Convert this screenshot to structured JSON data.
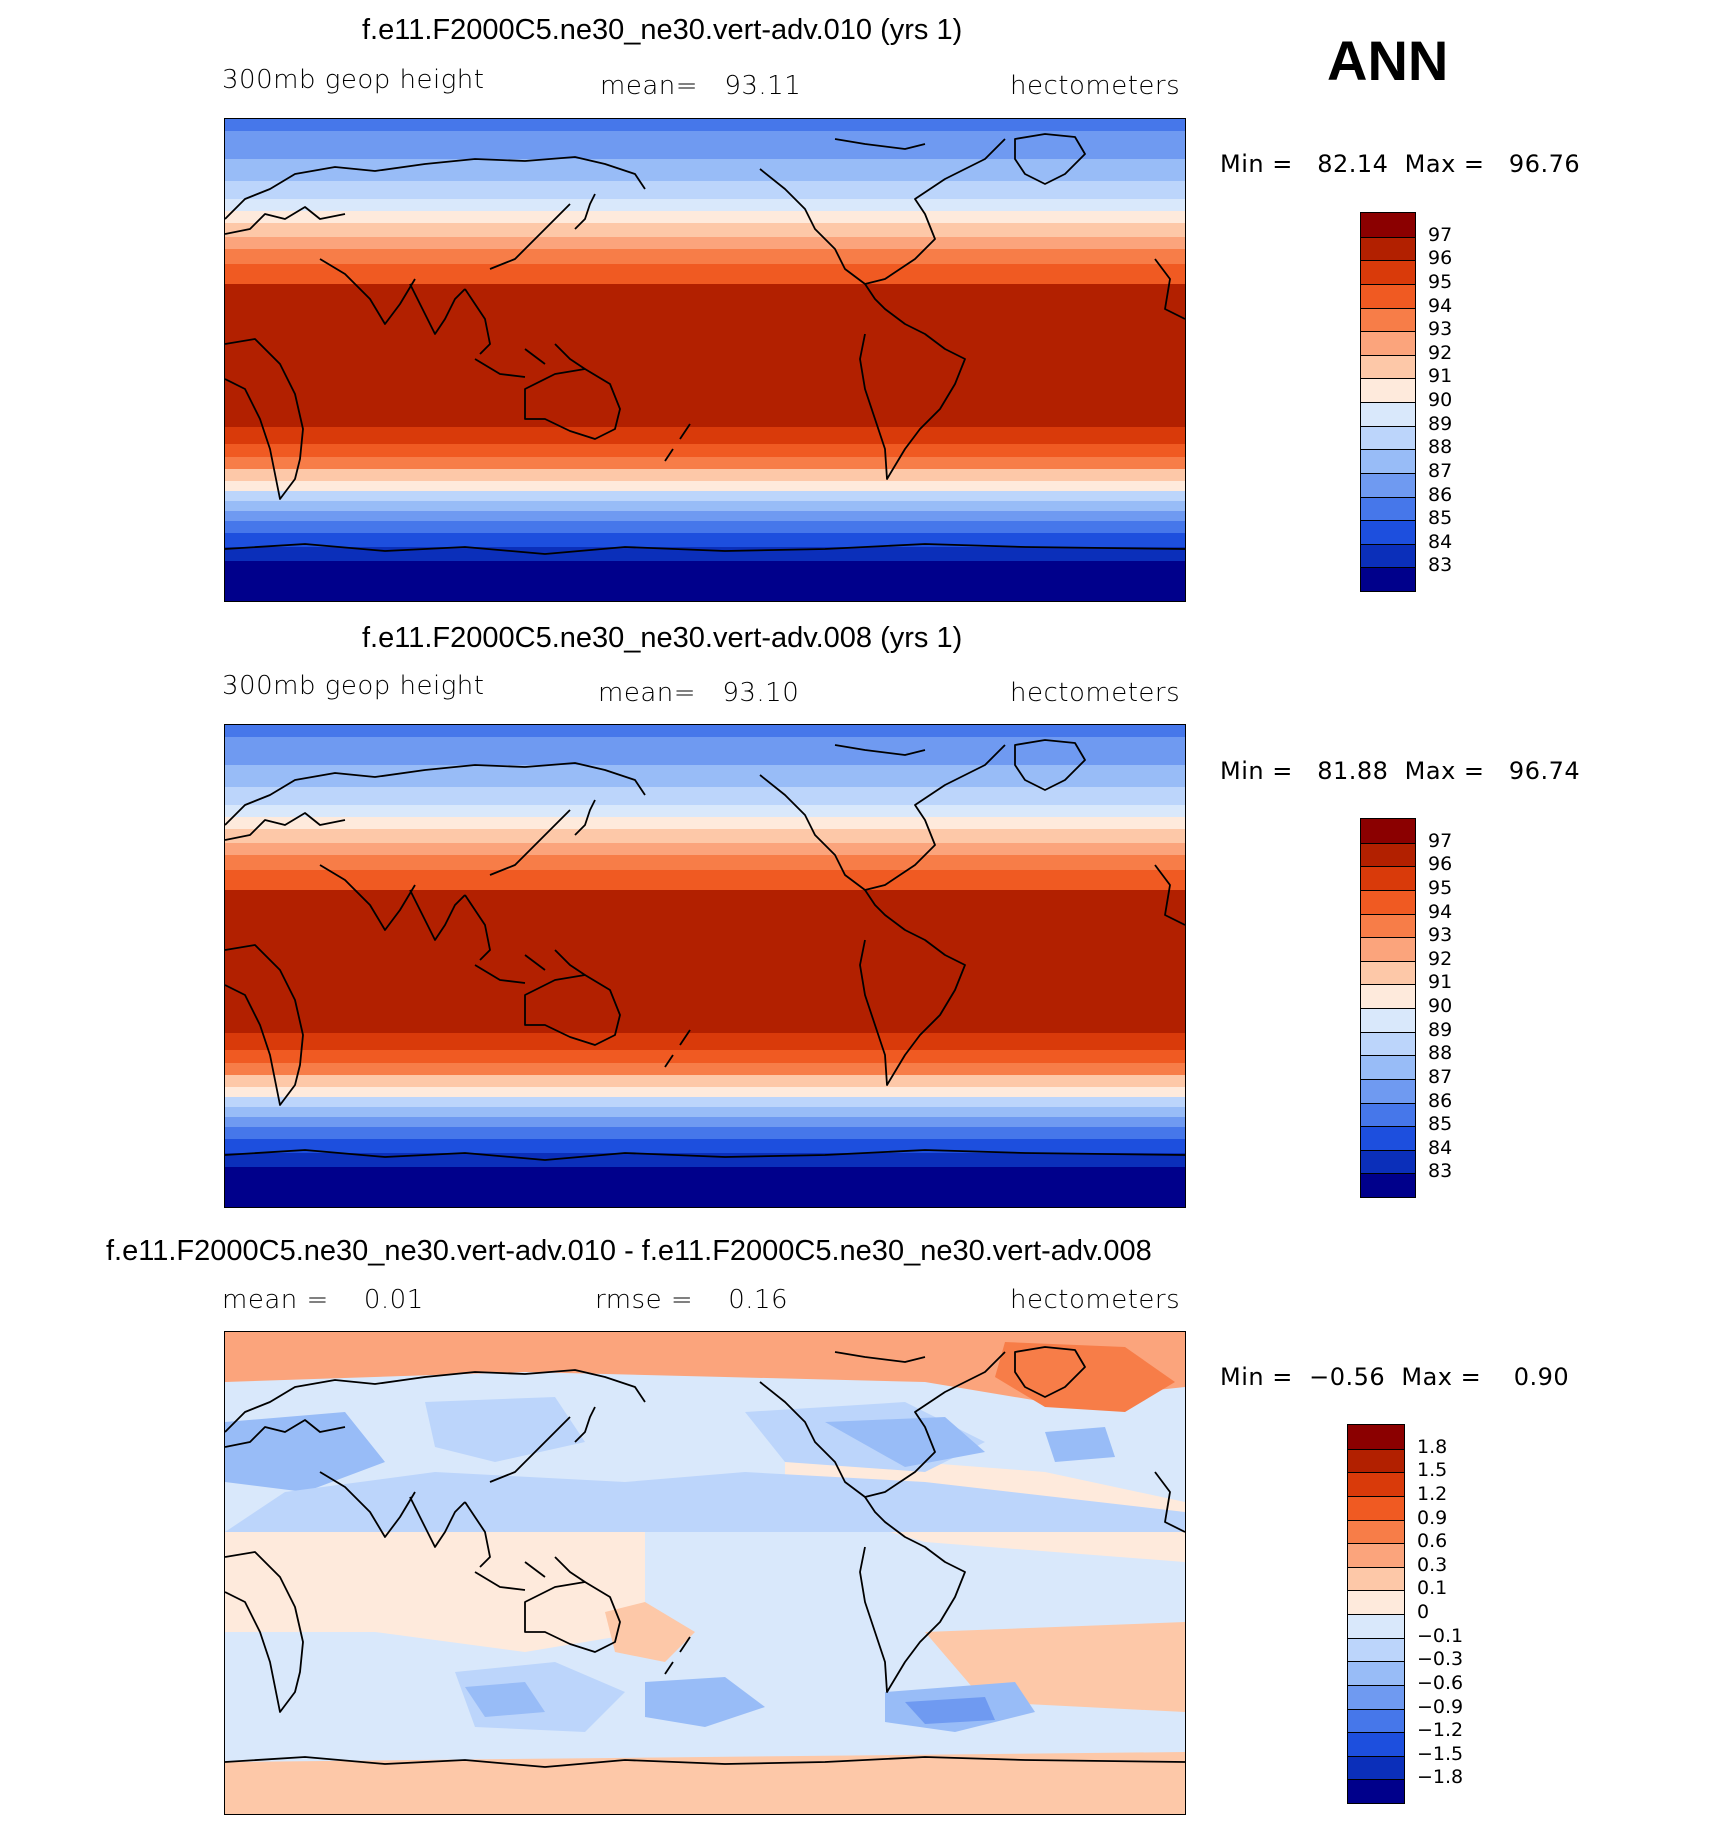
{
  "season_label": "ANN",
  "panels": [
    {
      "title": "f.e11.F2000C5.ne30_ne30.vert-adv.010 (yrs 1)",
      "left_label": "300mb geop height",
      "center_label": "mean=   93.11",
      "units": "hectometers",
      "minmax": "Min =   82.14  Max =   96.76",
      "kind": "field",
      "colorbar": {
        "labels": [
          "97",
          "96",
          "95",
          "94",
          "93",
          "92",
          "91",
          "90",
          "89",
          "88",
          "87",
          "86",
          "85",
          "84",
          "83"
        ],
        "colors": [
          "#8b0000",
          "#b22000",
          "#d93a0a",
          "#f05a22",
          "#f77d48",
          "#fba47c",
          "#fdc8a8",
          "#feeadc",
          "#d9e8fb",
          "#bcd5fb",
          "#98bcf7",
          "#6f9af1",
          "#4677ea",
          "#1d4fde",
          "#0b2fba",
          "#00008b"
        ]
      }
    },
    {
      "title": "f.e11.F2000C5.ne30_ne30.vert-adv.008 (yrs 1)",
      "left_label": "300mb geop height",
      "center_label": "mean=   93.10",
      "units": "hectometers",
      "minmax": "Min =   81.88  Max =   96.74",
      "kind": "field",
      "colorbar": {
        "labels": [
          "97",
          "96",
          "95",
          "94",
          "93",
          "92",
          "91",
          "90",
          "89",
          "88",
          "87",
          "86",
          "85",
          "84",
          "83"
        ],
        "colors": [
          "#8b0000",
          "#b22000",
          "#d93a0a",
          "#f05a22",
          "#f77d48",
          "#fba47c",
          "#fdc8a8",
          "#feeadc",
          "#d9e8fb",
          "#bcd5fb",
          "#98bcf7",
          "#6f9af1",
          "#4677ea",
          "#1d4fde",
          "#0b2fba",
          "#00008b"
        ]
      }
    },
    {
      "title": "f.e11.F2000C5.ne30_ne30.vert-adv.010 - f.e11.F2000C5.ne30_ne30.vert-adv.008",
      "left_label": "mean =    0.01",
      "center_label": "rmse =    0.16",
      "units": "hectometers",
      "minmax": "Min =  −0.56  Max =    0.90",
      "kind": "diff",
      "colorbar": {
        "labels": [
          "1.8",
          "1.5",
          "1.2",
          "0.9",
          "0.6",
          "0.3",
          "0.1",
          "0",
          "−0.1",
          "−0.3",
          "−0.6",
          "−0.9",
          "−1.2",
          "−1.5",
          "−1.8"
        ],
        "colors": [
          "#8b0000",
          "#b22000",
          "#d93a0a",
          "#f05a22",
          "#f77d48",
          "#fba47c",
          "#fdc8a8",
          "#feeadc",
          "#d9e8fb",
          "#bcd5fb",
          "#98bcf7",
          "#6f9af1",
          "#4677ea",
          "#1d4fde",
          "#0b2fba",
          "#00008b"
        ]
      }
    }
  ]
}
